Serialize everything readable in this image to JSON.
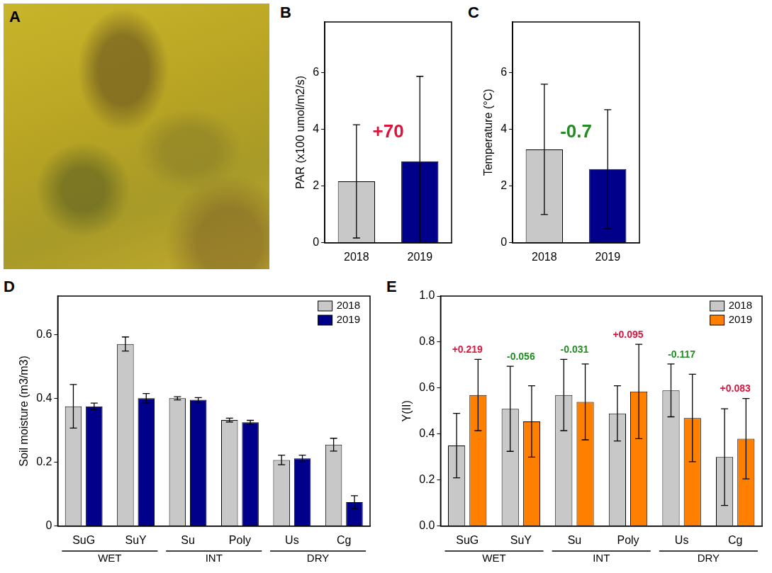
{
  "chart_data": [
    {
      "panel": "A",
      "type": "image"
    },
    {
      "panel": "B",
      "type": "bar",
      "ylabel": "PAR (x100 umol/m2/s)",
      "categories": [
        "2018",
        "2019"
      ],
      "values": [
        2.17,
        2.88
      ],
      "errors": [
        2.0,
        3.0
      ],
      "colors": [
        "#c8c8c8",
        "#00008b"
      ],
      "annotation": "+70",
      "ylim": [
        0,
        7.8
      ],
      "yticks": [
        0,
        2,
        4,
        6
      ],
      "grid": false
    },
    {
      "panel": "C",
      "type": "bar",
      "ylabel": "Temperature (°C)",
      "categories": [
        "2018",
        "2019"
      ],
      "values": [
        3.3,
        2.6
      ],
      "errors": [
        2.3,
        2.1
      ],
      "colors": [
        "#c8c8c8",
        "#00008b"
      ],
      "annotation": "-0.7",
      "ylim": [
        0,
        7.8
      ],
      "yticks": [
        0,
        2,
        4,
        6
      ],
      "grid": false
    },
    {
      "panel": "D",
      "type": "bar",
      "ylabel": "Soil moisture (m3/m3)",
      "categories": [
        "SuG",
        "SuY",
        "Su",
        "Poly",
        "Us",
        "Cg"
      ],
      "groups": [
        {
          "label": "WET",
          "categories": [
            "SuG",
            "SuY"
          ]
        },
        {
          "label": "INT",
          "categories": [
            "Su",
            "Poly"
          ]
        },
        {
          "label": "DRY",
          "categories": [
            "Us",
            "Cg"
          ]
        }
      ],
      "series": [
        {
          "name": "2018",
          "color": "#c8c8c8",
          "values": [
            0.375,
            0.57,
            0.4,
            0.332,
            0.207,
            0.255
          ],
          "errors": [
            0.068,
            0.022,
            0.005,
            0.006,
            0.015,
            0.02
          ]
        },
        {
          "name": "2019",
          "color": "#00008b",
          "values": [
            0.375,
            0.4,
            0.395,
            0.325,
            0.212,
            0.075
          ],
          "errors": [
            0.01,
            0.015,
            0.007,
            0.006,
            0.01,
            0.02
          ]
        }
      ],
      "ylim": [
        0,
        0.72
      ],
      "yticks": [
        0,
        0.2,
        0.4,
        0.6
      ],
      "grid": false,
      "legend": "upper right"
    },
    {
      "panel": "E",
      "type": "bar",
      "ylabel": "Y(II)",
      "categories": [
        "SuG",
        "SuY",
        "Su",
        "Poly",
        "Us",
        "Cg"
      ],
      "groups": [
        {
          "label": "WET",
          "categories": [
            "SuG",
            "SuY"
          ]
        },
        {
          "label": "INT",
          "categories": [
            "Su",
            "Poly"
          ]
        },
        {
          "label": "DRY",
          "categories": [
            "Us",
            "Cg"
          ]
        }
      ],
      "series": [
        {
          "name": "2018",
          "color": "#c8c8c8",
          "values": [
            0.35,
            0.51,
            0.57,
            0.49,
            0.59,
            0.3
          ],
          "errors": [
            0.14,
            0.185,
            0.155,
            0.12,
            0.115,
            0.21
          ]
        },
        {
          "name": "2019",
          "color": "#ff8000",
          "values": [
            0.57,
            0.455,
            0.54,
            0.585,
            0.47,
            0.38
          ],
          "errors": [
            0.155,
            0.155,
            0.165,
            0.205,
            0.19,
            0.175
          ]
        }
      ],
      "annotations": [
        "+0.219",
        "-0.056",
        "-0.031",
        "+0.095",
        "-0.117",
        "+0.083"
      ],
      "ylim": [
        0,
        1.0
      ],
      "yticks": [
        {
          "value": 0,
          "label": "0.0"
        },
        {
          "value": 0.2,
          "label": "0.2"
        },
        {
          "value": 0.4,
          "label": "0.4"
        },
        {
          "value": 0.6,
          "label": "0.6"
        },
        {
          "value": 0.8,
          "label": "0.8"
        },
        {
          "value": 1.0,
          "label": "1.0"
        }
      ],
      "grid": false,
      "legend": "upper right"
    }
  ]
}
